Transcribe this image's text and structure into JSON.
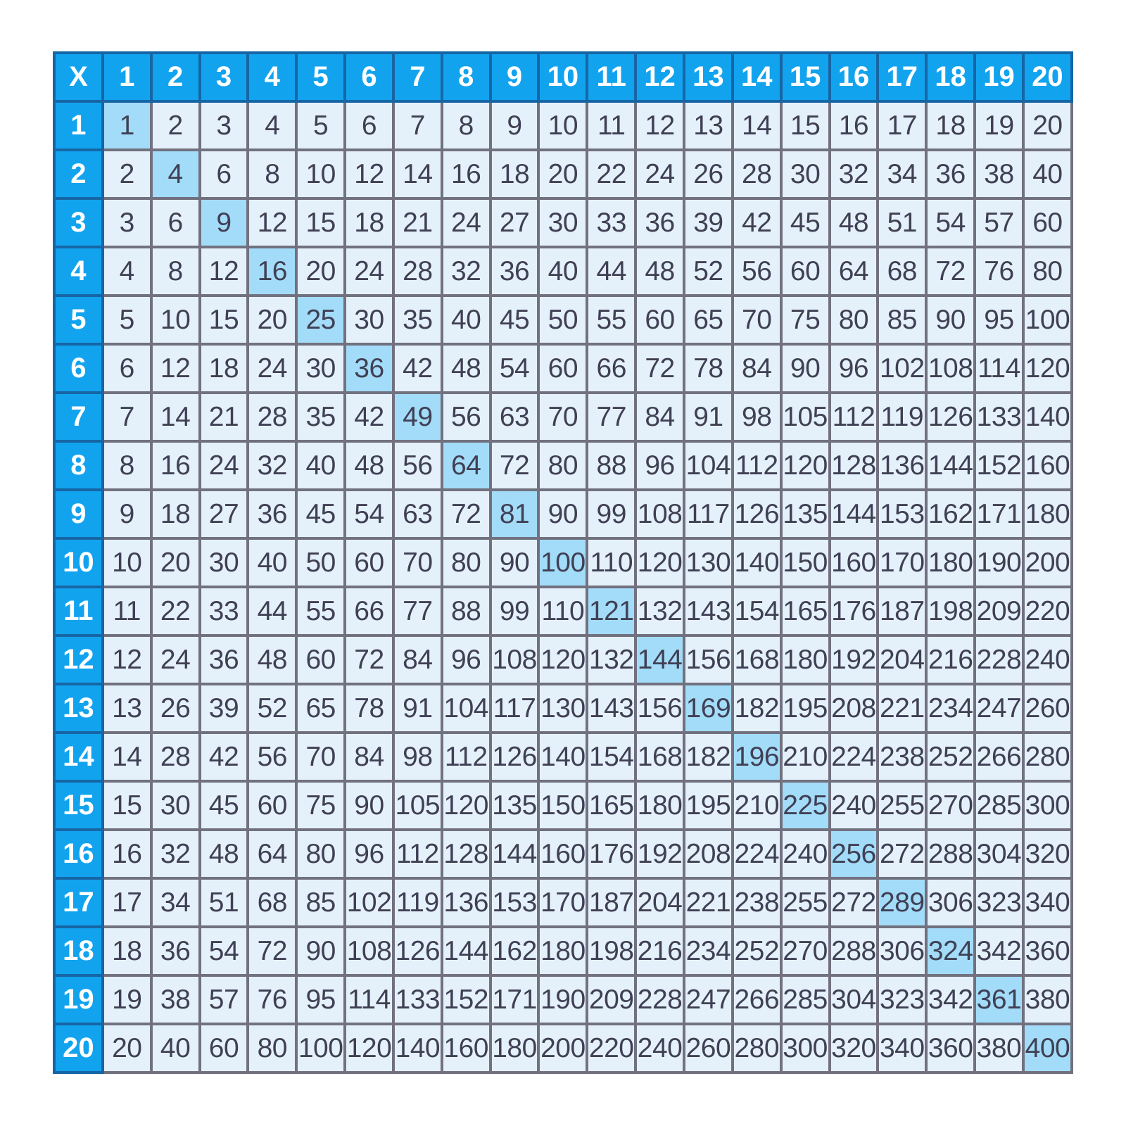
{
  "page": {
    "background": "#FFFFFF"
  },
  "table": {
    "title": "multiplication-table-1-to-20",
    "operator_label": "X",
    "column_headers": [
      "1",
      "2",
      "3",
      "4",
      "5",
      "6",
      "7",
      "8",
      "9",
      "10",
      "11",
      "12",
      "13",
      "14",
      "15",
      "16",
      "17",
      "18",
      "19",
      "20"
    ],
    "row_headers": [
      "1",
      "2",
      "3",
      "4",
      "5",
      "6",
      "7",
      "8",
      "9",
      "10",
      "11",
      "12",
      "13",
      "14",
      "15",
      "16",
      "17",
      "18",
      "19",
      "20"
    ],
    "products": [
      [
        1,
        2,
        3,
        4,
        5,
        6,
        7,
        8,
        9,
        10,
        11,
        12,
        13,
        14,
        15,
        16,
        17,
        18,
        19,
        20
      ],
      [
        2,
        4,
        6,
        8,
        10,
        12,
        14,
        16,
        18,
        20,
        22,
        24,
        26,
        28,
        30,
        32,
        34,
        36,
        38,
        40
      ],
      [
        3,
        6,
        9,
        12,
        15,
        18,
        21,
        24,
        27,
        30,
        33,
        36,
        39,
        42,
        45,
        48,
        51,
        54,
        57,
        60
      ],
      [
        4,
        8,
        12,
        16,
        20,
        24,
        28,
        32,
        36,
        40,
        44,
        48,
        52,
        56,
        60,
        64,
        68,
        72,
        76,
        80
      ],
      [
        5,
        10,
        15,
        20,
        25,
        30,
        35,
        40,
        45,
        50,
        55,
        60,
        65,
        70,
        75,
        80,
        85,
        90,
        95,
        100
      ],
      [
        6,
        12,
        18,
        24,
        30,
        36,
        42,
        48,
        54,
        60,
        66,
        72,
        78,
        84,
        90,
        96,
        102,
        108,
        114,
        120
      ],
      [
        7,
        14,
        21,
        28,
        35,
        42,
        49,
        56,
        63,
        70,
        77,
        84,
        91,
        98,
        105,
        112,
        119,
        126,
        133,
        140
      ],
      [
        8,
        16,
        24,
        32,
        40,
        48,
        56,
        64,
        72,
        80,
        88,
        96,
        104,
        112,
        120,
        128,
        136,
        144,
        152,
        160
      ],
      [
        9,
        18,
        27,
        36,
        45,
        54,
        63,
        72,
        81,
        90,
        99,
        108,
        117,
        126,
        135,
        144,
        153,
        162,
        171,
        180
      ],
      [
        10,
        20,
        30,
        40,
        50,
        60,
        70,
        80,
        90,
        100,
        110,
        120,
        130,
        140,
        150,
        160,
        170,
        180,
        190,
        200
      ],
      [
        11,
        22,
        33,
        44,
        55,
        66,
        77,
        88,
        99,
        110,
        121,
        132,
        143,
        154,
        165,
        176,
        187,
        198,
        209,
        220
      ],
      [
        12,
        24,
        36,
        48,
        60,
        72,
        84,
        96,
        108,
        120,
        132,
        144,
        156,
        168,
        180,
        192,
        204,
        216,
        228,
        240
      ],
      [
        13,
        26,
        39,
        52,
        65,
        78,
        91,
        104,
        117,
        130,
        143,
        156,
        169,
        182,
        195,
        208,
        221,
        234,
        247,
        260
      ],
      [
        14,
        28,
        42,
        56,
        70,
        84,
        98,
        112,
        126,
        140,
        154,
        168,
        182,
        196,
        210,
        224,
        238,
        252,
        266,
        280
      ],
      [
        15,
        30,
        45,
        60,
        75,
        90,
        105,
        120,
        135,
        150,
        165,
        180,
        195,
        210,
        225,
        240,
        255,
        270,
        285,
        300
      ],
      [
        16,
        32,
        48,
        64,
        80,
        96,
        112,
        128,
        144,
        160,
        176,
        192,
        208,
        224,
        240,
        256,
        272,
        288,
        304,
        320
      ],
      [
        17,
        34,
        51,
        68,
        85,
        102,
        119,
        136,
        153,
        170,
        187,
        204,
        221,
        238,
        255,
        272,
        289,
        306,
        323,
        340
      ],
      [
        18,
        36,
        54,
        72,
        90,
        108,
        126,
        144,
        162,
        180,
        198,
        216,
        234,
        252,
        270,
        288,
        306,
        324,
        342,
        360
      ],
      [
        19,
        38,
        57,
        76,
        95,
        114,
        133,
        152,
        171,
        190,
        209,
        228,
        247,
        266,
        285,
        304,
        323,
        342,
        361,
        380
      ],
      [
        20,
        40,
        60,
        80,
        100,
        120,
        140,
        160,
        180,
        200,
        220,
        240,
        260,
        280,
        300,
        320,
        340,
        360,
        380,
        400
      ]
    ],
    "highlight_rule": "perfect-squares-diagonal",
    "colors": {
      "header_bg": "#12A3EF",
      "header_text": "#FFFFFF",
      "header_border": "#1666A5",
      "cell_bg": "#E5F1FA",
      "cell_text": "#404055",
      "grid_border": "#71717F",
      "highlight_bg": "#A3DCF8"
    }
  }
}
